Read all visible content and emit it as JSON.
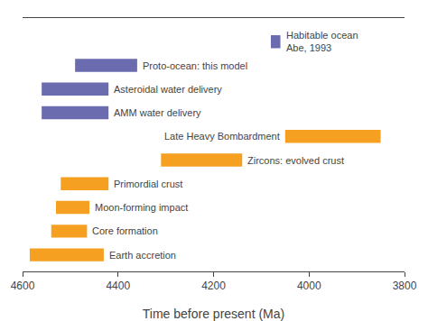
{
  "chart_data": {
    "type": "bar",
    "orientation": "horizontal",
    "categories": [
      "Habitable ocean\nAbe, 1993",
      "Proto-ocean: this model",
      "Asteroidal water delivery",
      "AMM water delivery",
      "Late Heavy Bombardment",
      "Zircons: evolved crust",
      "Primordial crust",
      "Moon-forming impact",
      "Core formation",
      "Earth accretion"
    ],
    "values": [
      [
        4080,
        4060
      ],
      [
        4490,
        4360
      ],
      [
        4560,
        4420
      ],
      [
        4560,
        4420
      ],
      [
        4050,
        3850
      ],
      [
        4310,
        4140
      ],
      [
        4520,
        4420
      ],
      [
        4530,
        4460
      ],
      [
        4540,
        4465
      ],
      [
        4585,
        4430
      ]
    ],
    "colors": [
      "#6b6bb0",
      "#6b6bb0",
      "#6b6bb0",
      "#6b6bb0",
      "#f5a020",
      "#f5a020",
      "#f5a020",
      "#f5a020",
      "#f5a020",
      "#f5a020"
    ],
    "xlabel": "Time before present (Ma)",
    "xlim": [
      4600,
      3800
    ],
    "xticks": [
      4600,
      4400,
      4200,
      4000,
      3800
    ],
    "grid": false,
    "tick_labels": "x"
  }
}
